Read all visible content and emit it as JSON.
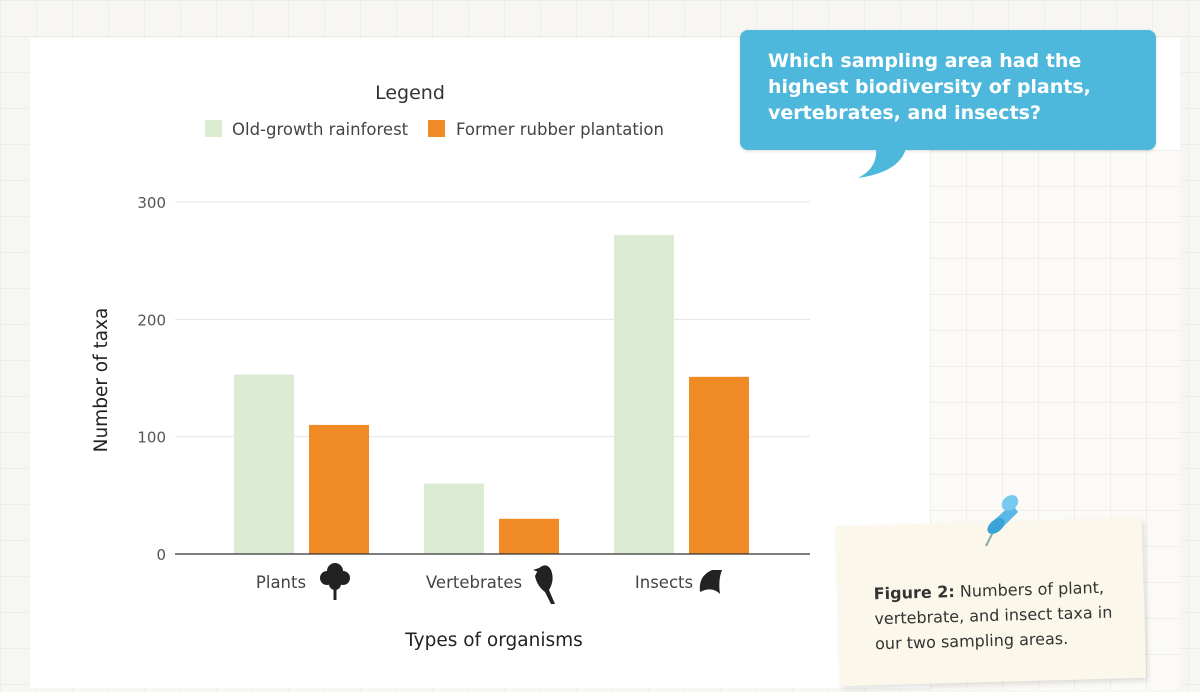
{
  "chart_data": {
    "type": "bar",
    "legend_title": "Legend",
    "categories": [
      "Plants",
      "Vertebrates",
      "Insects"
    ],
    "category_icons": [
      "tree-icon",
      "bird-icon",
      "moth-icon"
    ],
    "series": [
      {
        "name": "Old-growth rainforest",
        "values": [
          153,
          60,
          272
        ],
        "color": "#dcecd2"
      },
      {
        "name": "Former rubber plantation",
        "values": [
          110,
          30,
          151
        ],
        "color": "#f08a24"
      }
    ],
    "yticks": [
      0,
      100,
      200,
      300
    ],
    "ylim": [
      0,
      300
    ],
    "xlabel": "Types of organisms",
    "ylabel": "Number of taxa",
    "grid": true
  },
  "question": "Which sampling area had the highest biodiversity of plants, vertebrates, and insects?",
  "caption": {
    "label": "Figure 2:",
    "text": "Numbers of plant, vertebrate, and insect taxa in our two sampling areas."
  },
  "colors": {
    "bubble": "#4db8db",
    "note": "#fbf7ea",
    "pin": "#5bb8e6"
  }
}
